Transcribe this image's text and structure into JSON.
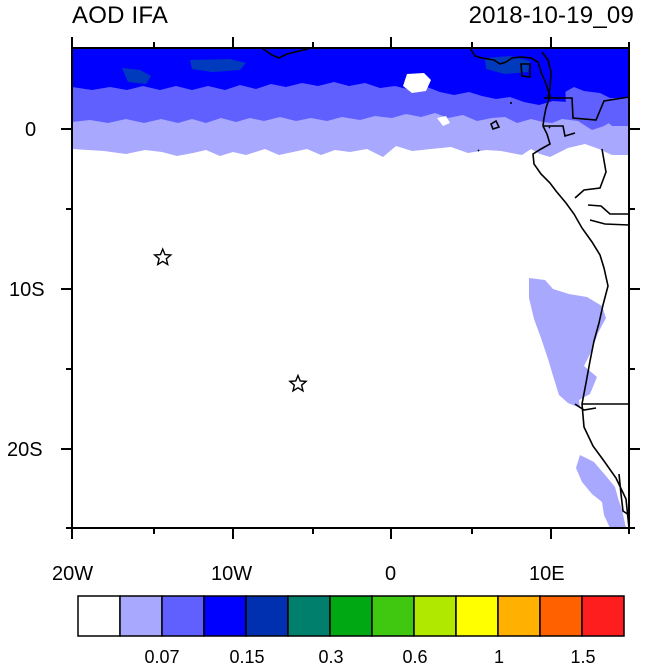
{
  "header": {
    "title": "AOD IFA",
    "timestamp": "2018-10-19_09"
  },
  "map": {
    "x_labels": [
      "20W",
      "10W",
      "0",
      "10E"
    ],
    "y_labels": [
      "0",
      "10S",
      "20S"
    ],
    "x_range_deg": [
      -20,
      15
    ],
    "y_range_deg": [
      -25,
      5
    ],
    "markers": [
      {
        "name": "star-marker-1",
        "lon": -14.3,
        "lat": -8.1
      },
      {
        "name": "star-marker-2",
        "lon": -5.8,
        "lat": -16.0
      }
    ]
  },
  "colorbar": {
    "colors": [
      "#ffffff",
      "#a8a8ff",
      "#6060ff",
      "#0000ff",
      "#0030b0",
      "#00806c",
      "#00a814",
      "#40c810",
      "#b0e800",
      "#ffff00",
      "#ffb000",
      "#ff6000",
      "#ff1e1e"
    ],
    "labels": [
      "0.07",
      "0.15",
      "0.3",
      "0.6",
      "1",
      "1.5"
    ]
  },
  "palette": {
    "aod_light": "#a8a8ff",
    "aod_mid": "#6060ff",
    "aod_strong": "#0000ff",
    "aod_teal": "#00806c",
    "coast": "#000000"
  }
}
